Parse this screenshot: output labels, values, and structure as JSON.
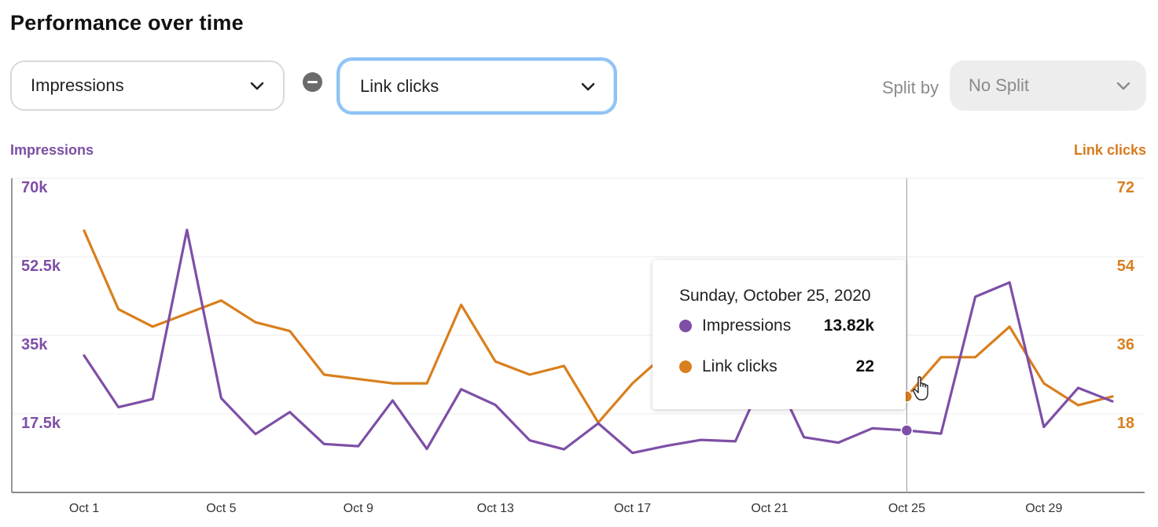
{
  "title": "Performance over time",
  "controls": {
    "metric1": "Impressions",
    "metric2": "Link clicks",
    "split_label": "Split by",
    "split_value": "No Split"
  },
  "icons": {
    "dropdown": "chevron-down-icon",
    "remove": "minus-circle-icon",
    "cursor": "hand-pointer-icon"
  },
  "colors": {
    "impressions": "#7e4fa6",
    "link_clicks": "#d97f1e",
    "focus_border": "#8fc3f5"
  },
  "tooltip": {
    "date": "Sunday, October 25, 2020",
    "rows": [
      {
        "name": "Impressions",
        "value": "13.82k"
      },
      {
        "name": "Link clicks",
        "value": "22"
      }
    ]
  },
  "chart_data": {
    "type": "line",
    "title": "",
    "y_left_label": "Impressions",
    "y_right_label": "Link clicks",
    "y_left_ticks": [
      "17.5k",
      "35k",
      "52.5k",
      "70k"
    ],
    "y_right_ticks": [
      "18",
      "36",
      "54",
      "72"
    ],
    "y_left_range": [
      0,
      70000
    ],
    "y_right_range": [
      0,
      72
    ],
    "x_ticks": [
      "Oct 1",
      "Oct 5",
      "Oct 9",
      "Oct 13",
      "Oct 17",
      "Oct 21",
      "Oct 25",
      "Oct 29"
    ],
    "x": [
      "Oct 1",
      "Oct 2",
      "Oct 3",
      "Oct 4",
      "Oct 5",
      "Oct 6",
      "Oct 7",
      "Oct 8",
      "Oct 9",
      "Oct 10",
      "Oct 11",
      "Oct 12",
      "Oct 13",
      "Oct 14",
      "Oct 15",
      "Oct 16",
      "Oct 17",
      "Oct 18",
      "Oct 19",
      "Oct 20",
      "Oct 21",
      "Oct 22",
      "Oct 23",
      "Oct 24",
      "Oct 25",
      "Oct 26",
      "Oct 27",
      "Oct 28",
      "Oct 29",
      "Oct 30",
      "Oct 31"
    ],
    "series": [
      {
        "name": "Impressions",
        "axis": "left",
        "values": [
          30500,
          19000,
          20800,
          58500,
          21000,
          13000,
          17900,
          10800,
          10300,
          20500,
          9700,
          23000,
          19500,
          11600,
          9600,
          15400,
          8800,
          10400,
          11700,
          11400,
          28500,
          12300,
          11100,
          14300,
          13820,
          13100,
          43600,
          46800,
          14600,
          23300,
          20300
        ]
      },
      {
        "name": "Link clicks",
        "axis": "right",
        "values": [
          60,
          42,
          38,
          41,
          44,
          39,
          37,
          27,
          26,
          25,
          25,
          43,
          30,
          27,
          29,
          16,
          25,
          32,
          30,
          35,
          25,
          25,
          25,
          24,
          22,
          31,
          31,
          38,
          25,
          20,
          22
        ]
      }
    ],
    "highlight": {
      "x": "Oct 25",
      "impressions": 13820,
      "link_clicks": 22
    },
    "grid": "horizontal",
    "legend": "none"
  }
}
